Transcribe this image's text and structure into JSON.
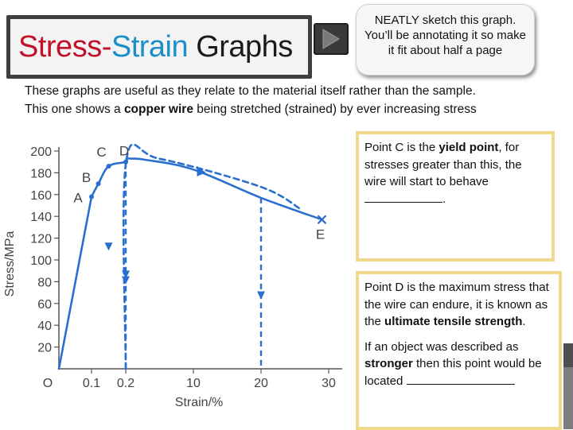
{
  "header": {
    "title_part1": "Stress",
    "title_dash": "-",
    "title_part2": "Strain",
    "title_part3": " Graphs",
    "nav_icon": "play-arrow-icon"
  },
  "note": {
    "text": "NEATLY sketch this graph. You’ll be annotating it so make it fit about half a page"
  },
  "intro": {
    "line1": "These graphs are useful as they relate to the material itself rather than the sample.",
    "line2_pre": "This one shows a ",
    "line2_bold": "copper wire",
    "line2_post": " being stretched  (strained) by ever increasing stress"
  },
  "chart_data": {
    "type": "line",
    "xlabel": "Strain/%",
    "ylabel": "Stress/MPa",
    "x_ticks": [
      "O",
      "0.1",
      "0.2",
      "10",
      "20",
      "30"
    ],
    "y_ticks": [
      "20",
      "40",
      "60",
      "80",
      "100",
      "120",
      "140",
      "160",
      "180",
      "200"
    ],
    "ylim": [
      0,
      200
    ],
    "series": [
      {
        "style": "solid",
        "x": [
          0,
          0.1,
          0.12,
          0.15,
          0.2,
          0.3,
          1,
          3,
          10,
          20,
          29
        ],
        "y": [
          0,
          158,
          170,
          186,
          190,
          193,
          193,
          192,
          183,
          157,
          137
        ]
      },
      {
        "style": "dashed",
        "x": [
          0.2,
          0.25,
          5,
          20,
          26
        ],
        "y": [
          0,
          190,
          193,
          167,
          146
        ]
      }
    ],
    "unloading_lines": [
      {
        "x_from": 0.2,
        "y": 190,
        "style": "dashed"
      },
      {
        "x_from": 20,
        "y": 157,
        "style": "dashed"
      }
    ],
    "points": [
      {
        "label": "A",
        "x": 0.1,
        "y": 158
      },
      {
        "label": "B",
        "x": 0.12,
        "y": 170
      },
      {
        "label": "C",
        "x": 0.15,
        "y": 186
      },
      {
        "label": "D",
        "x": 0.2,
        "y": 190
      },
      {
        "label": "E",
        "x": 29,
        "y": 137
      }
    ],
    "colors": {
      "curve": "#2a6fcf",
      "axis": "#555555",
      "text": "#444444"
    }
  },
  "annotations": {
    "c_pre": "Point C is the ",
    "c_bold": "yield point",
    "c_post": ", for stresses greater than this, the wire will start to behave ",
    "c_end": ".",
    "d_pre": "Point D is the maximum stress that the wire can endure, it is known as the ",
    "d_bold": "ultimate tensile strength",
    "d_end": ".",
    "s_pre": "If an object was described as ",
    "s_bold": "stronger",
    "s_post": " then this point would be  located "
  }
}
